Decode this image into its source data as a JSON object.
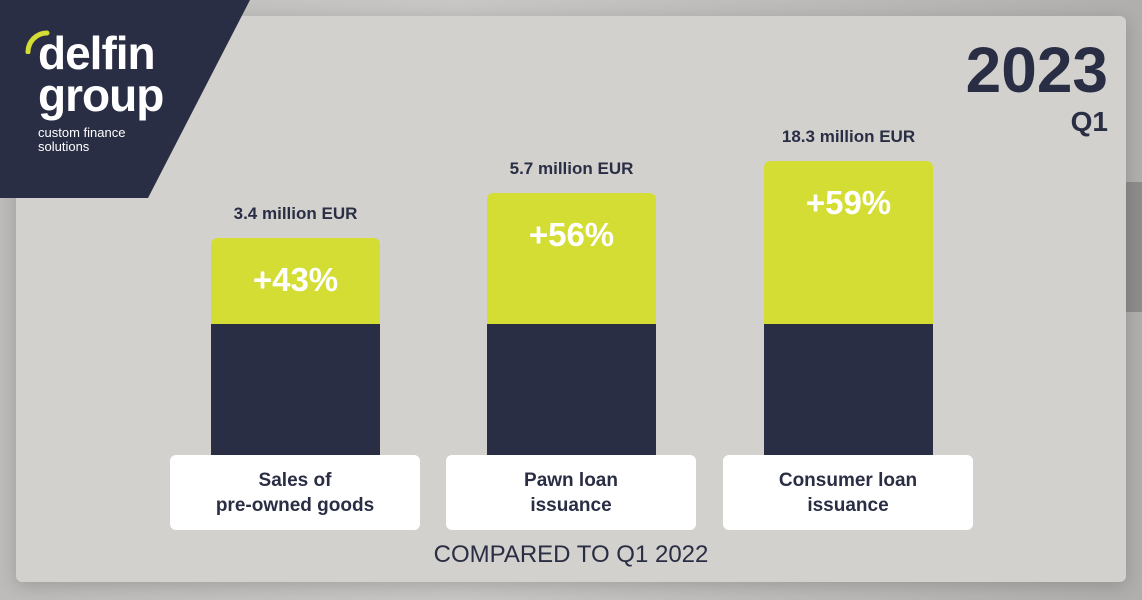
{
  "brand": {
    "name_line1": "delfin",
    "name_line2": "group",
    "tagline_line1": "custom finance",
    "tagline_line2": "solutions",
    "colors": {
      "navy": "#2a2e44",
      "lime": "#d4dd34",
      "white": "#ffffff"
    }
  },
  "period": {
    "year": "2023",
    "quarter": "Q1"
  },
  "chart_data": {
    "type": "bar",
    "categories": [
      [
        "Sales of",
        "pre-owned goods"
      ],
      [
        "Pawn loan",
        "issuance"
      ],
      [
        "Consumer loan",
        "issuance"
      ]
    ],
    "values": [
      3.4,
      5.7,
      18.3
    ],
    "value_labels": [
      "3.4 million EUR",
      "5.7 million EUR",
      "18.3 million EUR"
    ],
    "growth": [
      43,
      56,
      59
    ],
    "growth_labels": [
      "+43%",
      "+56%",
      "+59%"
    ],
    "unit": "million EUR",
    "footnote": "COMPARED TO Q1 2022",
    "title": "",
    "xlabel": "",
    "ylabel": "",
    "grid": false,
    "legend": "none"
  }
}
